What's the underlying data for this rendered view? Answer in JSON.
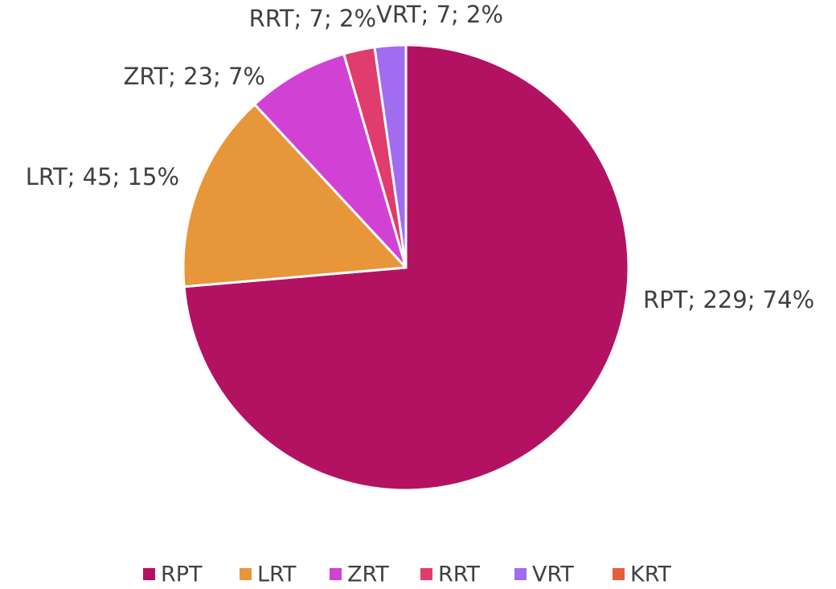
{
  "chart_data": {
    "type": "pie",
    "categories": [
      "RPT",
      "LRT",
      "ZRT",
      "RRT",
      "VRT",
      "KRT"
    ],
    "values": [
      229,
      45,
      23,
      7,
      7,
      0
    ],
    "value_labels": [
      "RPT; 229; 74%",
      "LRT; 45; 15%",
      "ZRT; 23; 7%",
      "RRT; 7; 2%",
      "VRT; 7; 2%",
      null
    ],
    "colors": [
      "#b31263",
      "#e8963a",
      "#d142d4",
      "#e03c6e",
      "#a06cf0",
      "#e0603a"
    ],
    "legend": "bottom"
  }
}
